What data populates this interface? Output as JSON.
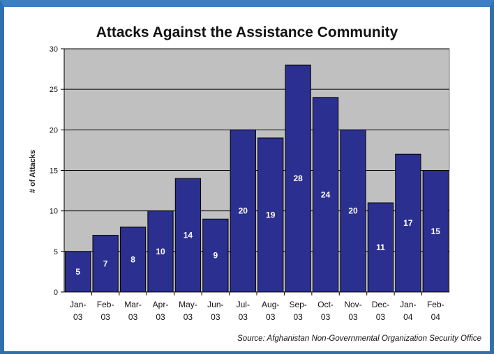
{
  "chart_data": {
    "type": "bar",
    "title": "Attacks Against the Assistance Community",
    "xlabel": "",
    "ylabel": "# of Attacks",
    "ylim": [
      0,
      30
    ],
    "yticks": [
      0,
      5,
      10,
      15,
      20,
      25,
      30
    ],
    "grid": "horizontal",
    "categories": [
      [
        "Jan-",
        "03"
      ],
      [
        "Feb-",
        "03"
      ],
      [
        "Mar-",
        "03"
      ],
      [
        "Apr-",
        "03"
      ],
      [
        "May-",
        "03"
      ],
      [
        "Jun-",
        "03"
      ],
      [
        "Jul-",
        "03"
      ],
      [
        "Aug-",
        "03"
      ],
      [
        "Sep-",
        "03"
      ],
      [
        "Oct-",
        "03"
      ],
      [
        "Nov-",
        "03"
      ],
      [
        "Dec-",
        "03"
      ],
      [
        "Jan-",
        "04"
      ],
      [
        "Feb-",
        "04"
      ]
    ],
    "values": [
      5,
      7,
      8,
      10,
      14,
      9,
      20,
      19,
      28,
      24,
      20,
      11,
      17,
      15
    ],
    "data_labels": true,
    "source": "Source: Afghanistan Non-Governmental Organization Security Office",
    "colors": {
      "bar": "#2b2f8f",
      "plot_background": "#c0c0c0",
      "gridline": "#000000",
      "frame": "#2f6fb0"
    }
  }
}
